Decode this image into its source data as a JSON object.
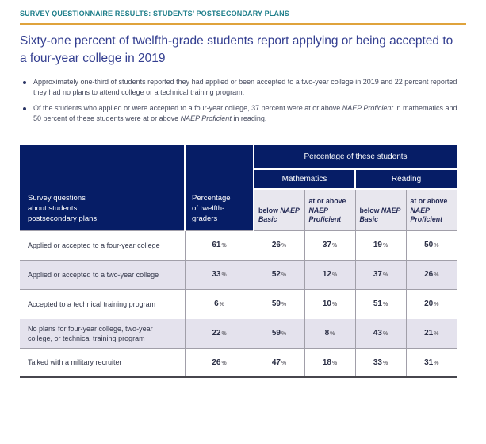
{
  "page": {
    "eyebrow": "SURVEY QUESTIONNAIRE RESULTS: STUDENTS’ POSTSECONDARY PLANS",
    "title": "Sixty-one percent of twelfth-grade students report applying or being accepted to a four-year college in 2019"
  },
  "bullets": [
    {
      "segments": [
        {
          "text": "Approximately one-third of students reported they had applied or been accepted to a two-year college in 2019 and 22 percent reported they had no plans to attend college or a technical training program.",
          "italic": false
        }
      ]
    },
    {
      "segments": [
        {
          "text": "Of the students who applied or were accepted to a four-year college, 37 percent were at or above ",
          "italic": false
        },
        {
          "text": "NAEP Proficient",
          "italic": true
        },
        {
          "text": " in mathematics and 50 percent of these students were at or above ",
          "italic": false
        },
        {
          "text": "NAEP Proficient",
          "italic": true
        },
        {
          "text": " in reading.",
          "italic": false
        }
      ]
    }
  ],
  "table": {
    "row_header_lines": [
      "Survey questions",
      "about students’",
      "postsecondary plans"
    ],
    "col2_header_lines": [
      "Percentage",
      "of twelfth-",
      "graders"
    ],
    "group_header": "Percentage of these students",
    "subject_headers": [
      "Mathematics",
      "Reading"
    ],
    "metric_columns": [
      {
        "prefix": "below",
        "term": "NAEP Basic"
      },
      {
        "prefix": "at or above",
        "term": "NAEP Proficient"
      },
      {
        "prefix": "below",
        "term": "NAEP Basic"
      },
      {
        "prefix": "at or above",
        "term": "NAEP Proficient"
      }
    ],
    "percent_sign": "%",
    "rows": [
      {
        "label": "Applied or accepted to a four-year college",
        "shaded": false,
        "values": [
          61,
          26,
          37,
          19,
          50
        ]
      },
      {
        "label": "Applied or accepted to a two-year college",
        "shaded": true,
        "values": [
          33,
          52,
          12,
          37,
          26
        ]
      },
      {
        "label": "Accepted to a technical training program",
        "shaded": false,
        "values": [
          6,
          59,
          10,
          51,
          20
        ]
      },
      {
        "label": "No plans for four-year college, two-year college, or technical training program",
        "shaded": true,
        "values": [
          22,
          59,
          8,
          43,
          21
        ]
      },
      {
        "label": "Talked with a military recruiter",
        "shaded": false,
        "values": [
          26,
          47,
          18,
          33,
          31
        ]
      }
    ]
  },
  "colors": {
    "eyebrow_teal": "#1d7e8a",
    "rule_gold": "#dfa33c",
    "title_blue": "#333e90",
    "header_navy": "#061d66",
    "row_lavender": "#e4e2ed",
    "subheader_gray": "#e8e7ee",
    "grid_line": "#a19fa9"
  }
}
